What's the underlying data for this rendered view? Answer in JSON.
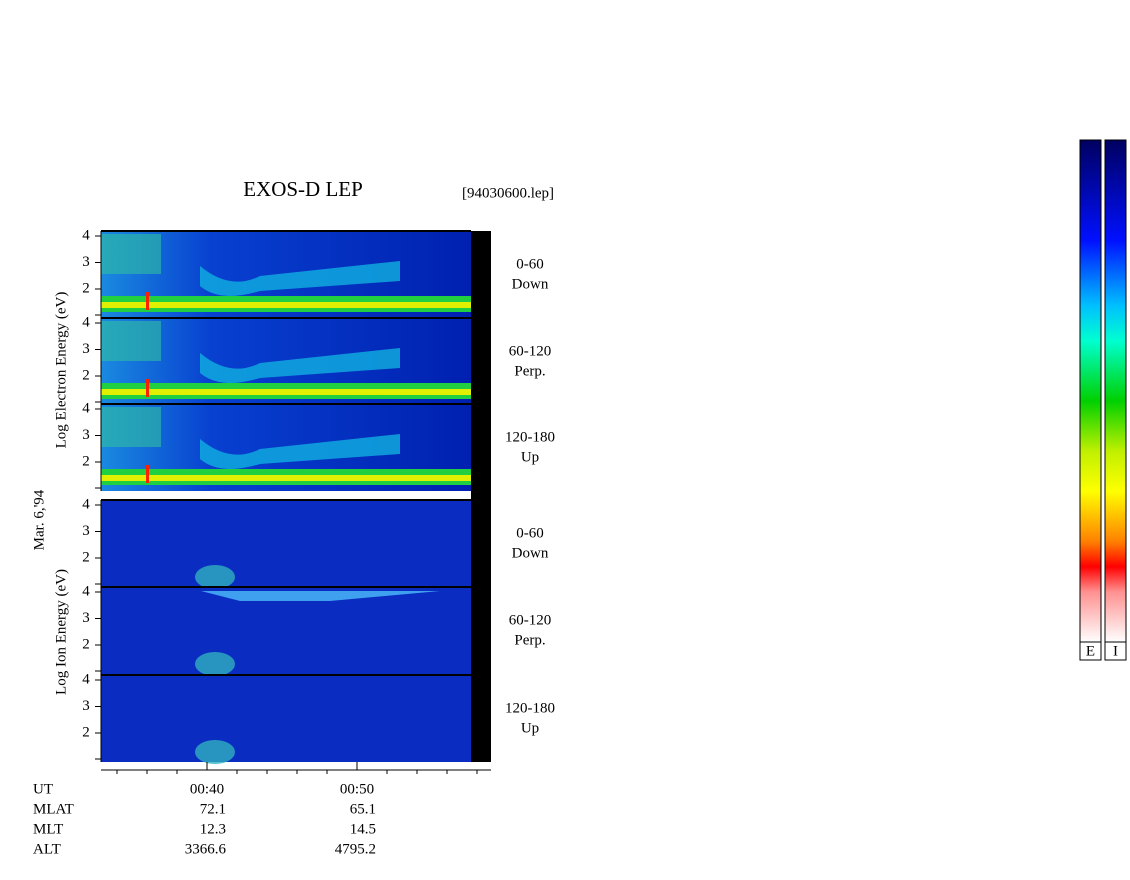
{
  "title": "EXOS-D LEP",
  "file": "[94030600.lep]",
  "date": "Mar. 6,'94",
  "electron": {
    "axis_label": "Log Electron Energy (eV)",
    "panels": [
      {
        "ticks": [
          4,
          3,
          2
        ],
        "range": "0-60",
        "direction": "Down"
      },
      {
        "ticks": [
          4,
          3,
          2
        ],
        "range": "60-120",
        "direction": "Perp."
      },
      {
        "ticks": [
          4,
          3,
          2
        ],
        "range": "120-180",
        "direction": "Up"
      }
    ]
  },
  "ion": {
    "axis_label": "Log Ion Energy (eV)",
    "panels": [
      {
        "ticks": [
          4,
          3,
          2
        ],
        "range": "0-60",
        "direction": "Down"
      },
      {
        "ticks": [
          4,
          3,
          2
        ],
        "range": "60-120",
        "direction": "Perp."
      },
      {
        "ticks": [
          4,
          3,
          2
        ],
        "range": "120-180",
        "direction": "Up"
      }
    ]
  },
  "footer": {
    "rows": [
      {
        "label": "UT",
        "values": [
          "00:40",
          "00:50"
        ]
      },
      {
        "label": "MLAT",
        "values": [
          "72.1",
          "65.1"
        ]
      },
      {
        "label": "MLT",
        "values": [
          "12.3",
          "14.5"
        ]
      },
      {
        "label": "ALT",
        "values": [
          "3366.6",
          "4795.2"
        ]
      }
    ]
  },
  "colorbars": [
    "E",
    "I"
  ]
}
